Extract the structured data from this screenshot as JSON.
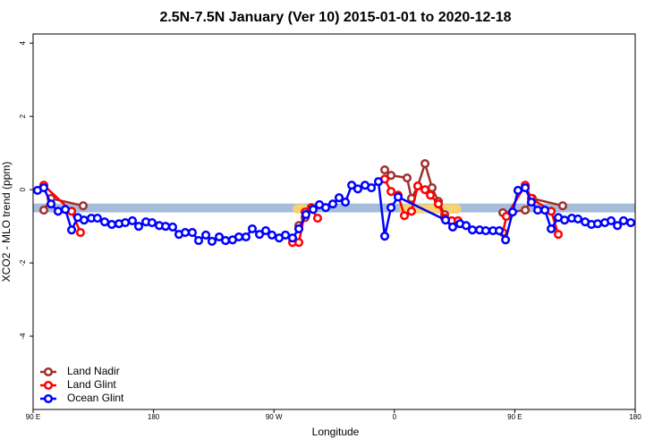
{
  "chart_data": {
    "type": "line",
    "title": "2.5N-7.5N January (Ver 10)   2015-01-01 to 2020-12-18",
    "x_label": "Longitude",
    "y_label": "XCO2 - MLO trend (ppm)",
    "xlim": [
      90,
      540
    ],
    "ylim": [
      -6,
      4.25
    ],
    "xticks": [
      {
        "value": 90,
        "label": "90 E"
      },
      {
        "value": 180,
        "label": "180"
      },
      {
        "value": 270,
        "label": "90 W"
      },
      {
        "value": 360,
        "label": "0"
      },
      {
        "value": 450,
        "label": "90 E"
      },
      {
        "value": 540,
        "label": "180"
      }
    ],
    "yticks": [
      -4,
      -2,
      0,
      2,
      4
    ],
    "legend": "bottom-left",
    "bands": [
      {
        "x": [
          90,
          540
        ],
        "y": [
          -0.62,
          -0.38
        ],
        "color": "#a5bddb"
      },
      {
        "x": [
          284,
          296
        ],
        "y": [
          -0.65,
          -0.4
        ],
        "color": "#f9d26e"
      },
      {
        "x": [
          364,
          410
        ],
        "y": [
          -0.65,
          -0.4
        ],
        "color": "#f9d26e"
      }
    ],
    "series": [
      {
        "name": "Land Nadir",
        "color": "#a0302e",
        "x": [
          98.0,
          103.4,
          127.4,
          200,
          288.6,
          293.3,
          298.0,
          380,
          352.8,
          357.5,
          369.5,
          372.8,
          377.5,
          382.9,
          388.2,
          392.9,
          397.6,
          402.9,
          430,
          441.1,
          457.8,
          463.1,
          485.8
        ],
        "values": [
          -0.56,
          -0.24,
          -0.44,
          null,
          -0.98,
          -0.76,
          -0.49,
          null,
          0.54,
          0.39,
          0.32,
          -0.24,
          0.1,
          0.71,
          0.05,
          -0.32,
          -0.68,
          -0.88,
          null,
          -0.63,
          -0.56,
          -0.24,
          -0.44
        ]
      },
      {
        "name": "Land Glint",
        "color": "#ff0000",
        "x": [
          98.0,
          118.8,
          125.4,
          200,
          283.9,
          288.6,
          293.3,
          298.0,
          302.6,
          380,
          352.8,
          357.5,
          362.8,
          367.5,
          372.8,
          377.5,
          382.9,
          386.9,
          392.9,
          397.6,
          402.9,
          407.6,
          430,
          441.1,
          443.7,
          457.8,
          462.4,
          477.2,
          482.5
        ],
        "values": [
          0.12,
          -0.59,
          -1.17,
          null,
          -1.44,
          -1.44,
          -0.61,
          -0.51,
          -0.78,
          null,
          0.29,
          -0.05,
          -0.15,
          -0.71,
          -0.59,
          0.1,
          0.0,
          -0.15,
          -0.39,
          -0.78,
          -0.85,
          -0.85,
          null,
          -1.17,
          -0.73,
          0.12,
          -0.24,
          -0.59,
          -1.22
        ]
      },
      {
        "name": "Ocean Glint",
        "color": "#0000ff",
        "x": [
          93.3,
          98.0,
          103.4,
          108.7,
          114.1,
          118.8,
          123.4,
          128.1,
          133.5,
          138.1,
          143.5,
          148.8,
          154.2,
          158.9,
          164.2,
          168.9,
          174.3,
          178.9,
          184.3,
          189.0,
          194.3,
          199.0,
          203.7,
          209.0,
          213.7,
          219.1,
          223.7,
          229.1,
          233.8,
          239.1,
          243.8,
          249.1,
          253.8,
          259.2,
          263.9,
          268.5,
          273.9,
          278.6,
          283.9,
          288.6,
          293.9,
          299.3,
          304.0,
          308.7,
          314.0,
          318.7,
          323.4,
          328.1,
          332.7,
          338.1,
          342.8,
          348.1,
          352.8,
          357.5,
          362.8,
          398.3,
          403.6,
          409.0,
          413.6,
          418.3,
          423.7,
          428.3,
          433.7,
          438.4,
          443.1,
          448.4,
          452.4,
          457.8,
          462.4,
          467.1,
          472.5,
          477.2,
          482.5,
          487.2,
          492.6,
          497.2,
          502.6,
          507.3,
          511.9,
          517.3,
          522.0,
          526.7,
          531.3,
          536.7
        ],
        "values": [
          -0.02,
          0.05,
          -0.39,
          -0.59,
          -0.54,
          -1.1,
          -0.76,
          -0.83,
          -0.78,
          -0.78,
          -0.88,
          -0.95,
          -0.93,
          -0.9,
          -0.85,
          -1.0,
          -0.88,
          -0.9,
          -0.98,
          -1.0,
          -1.02,
          -1.22,
          -1.17,
          -1.17,
          -1.39,
          -1.24,
          -1.41,
          -1.29,
          -1.39,
          -1.37,
          -1.29,
          -1.29,
          -1.07,
          -1.22,
          -1.12,
          -1.24,
          -1.32,
          -1.24,
          -1.32,
          -1.07,
          -0.68,
          -0.54,
          -0.41,
          -0.49,
          -0.39,
          -0.22,
          -0.34,
          0.12,
          0.02,
          0.12,
          0.05,
          0.22,
          -1.27,
          -0.49,
          -0.2,
          -0.83,
          -1.02,
          -0.93,
          -0.98,
          -1.1,
          -1.1,
          -1.12,
          -1.12,
          -1.12,
          -1.37,
          -0.61,
          -0.02,
          0.05,
          -0.34,
          -0.56,
          -0.56,
          -1.07,
          -0.76,
          -0.83,
          -0.78,
          -0.8,
          -0.88,
          -0.95,
          -0.93,
          -0.9,
          -0.85,
          -0.98,
          -0.85,
          -0.9
        ]
      }
    ]
  }
}
